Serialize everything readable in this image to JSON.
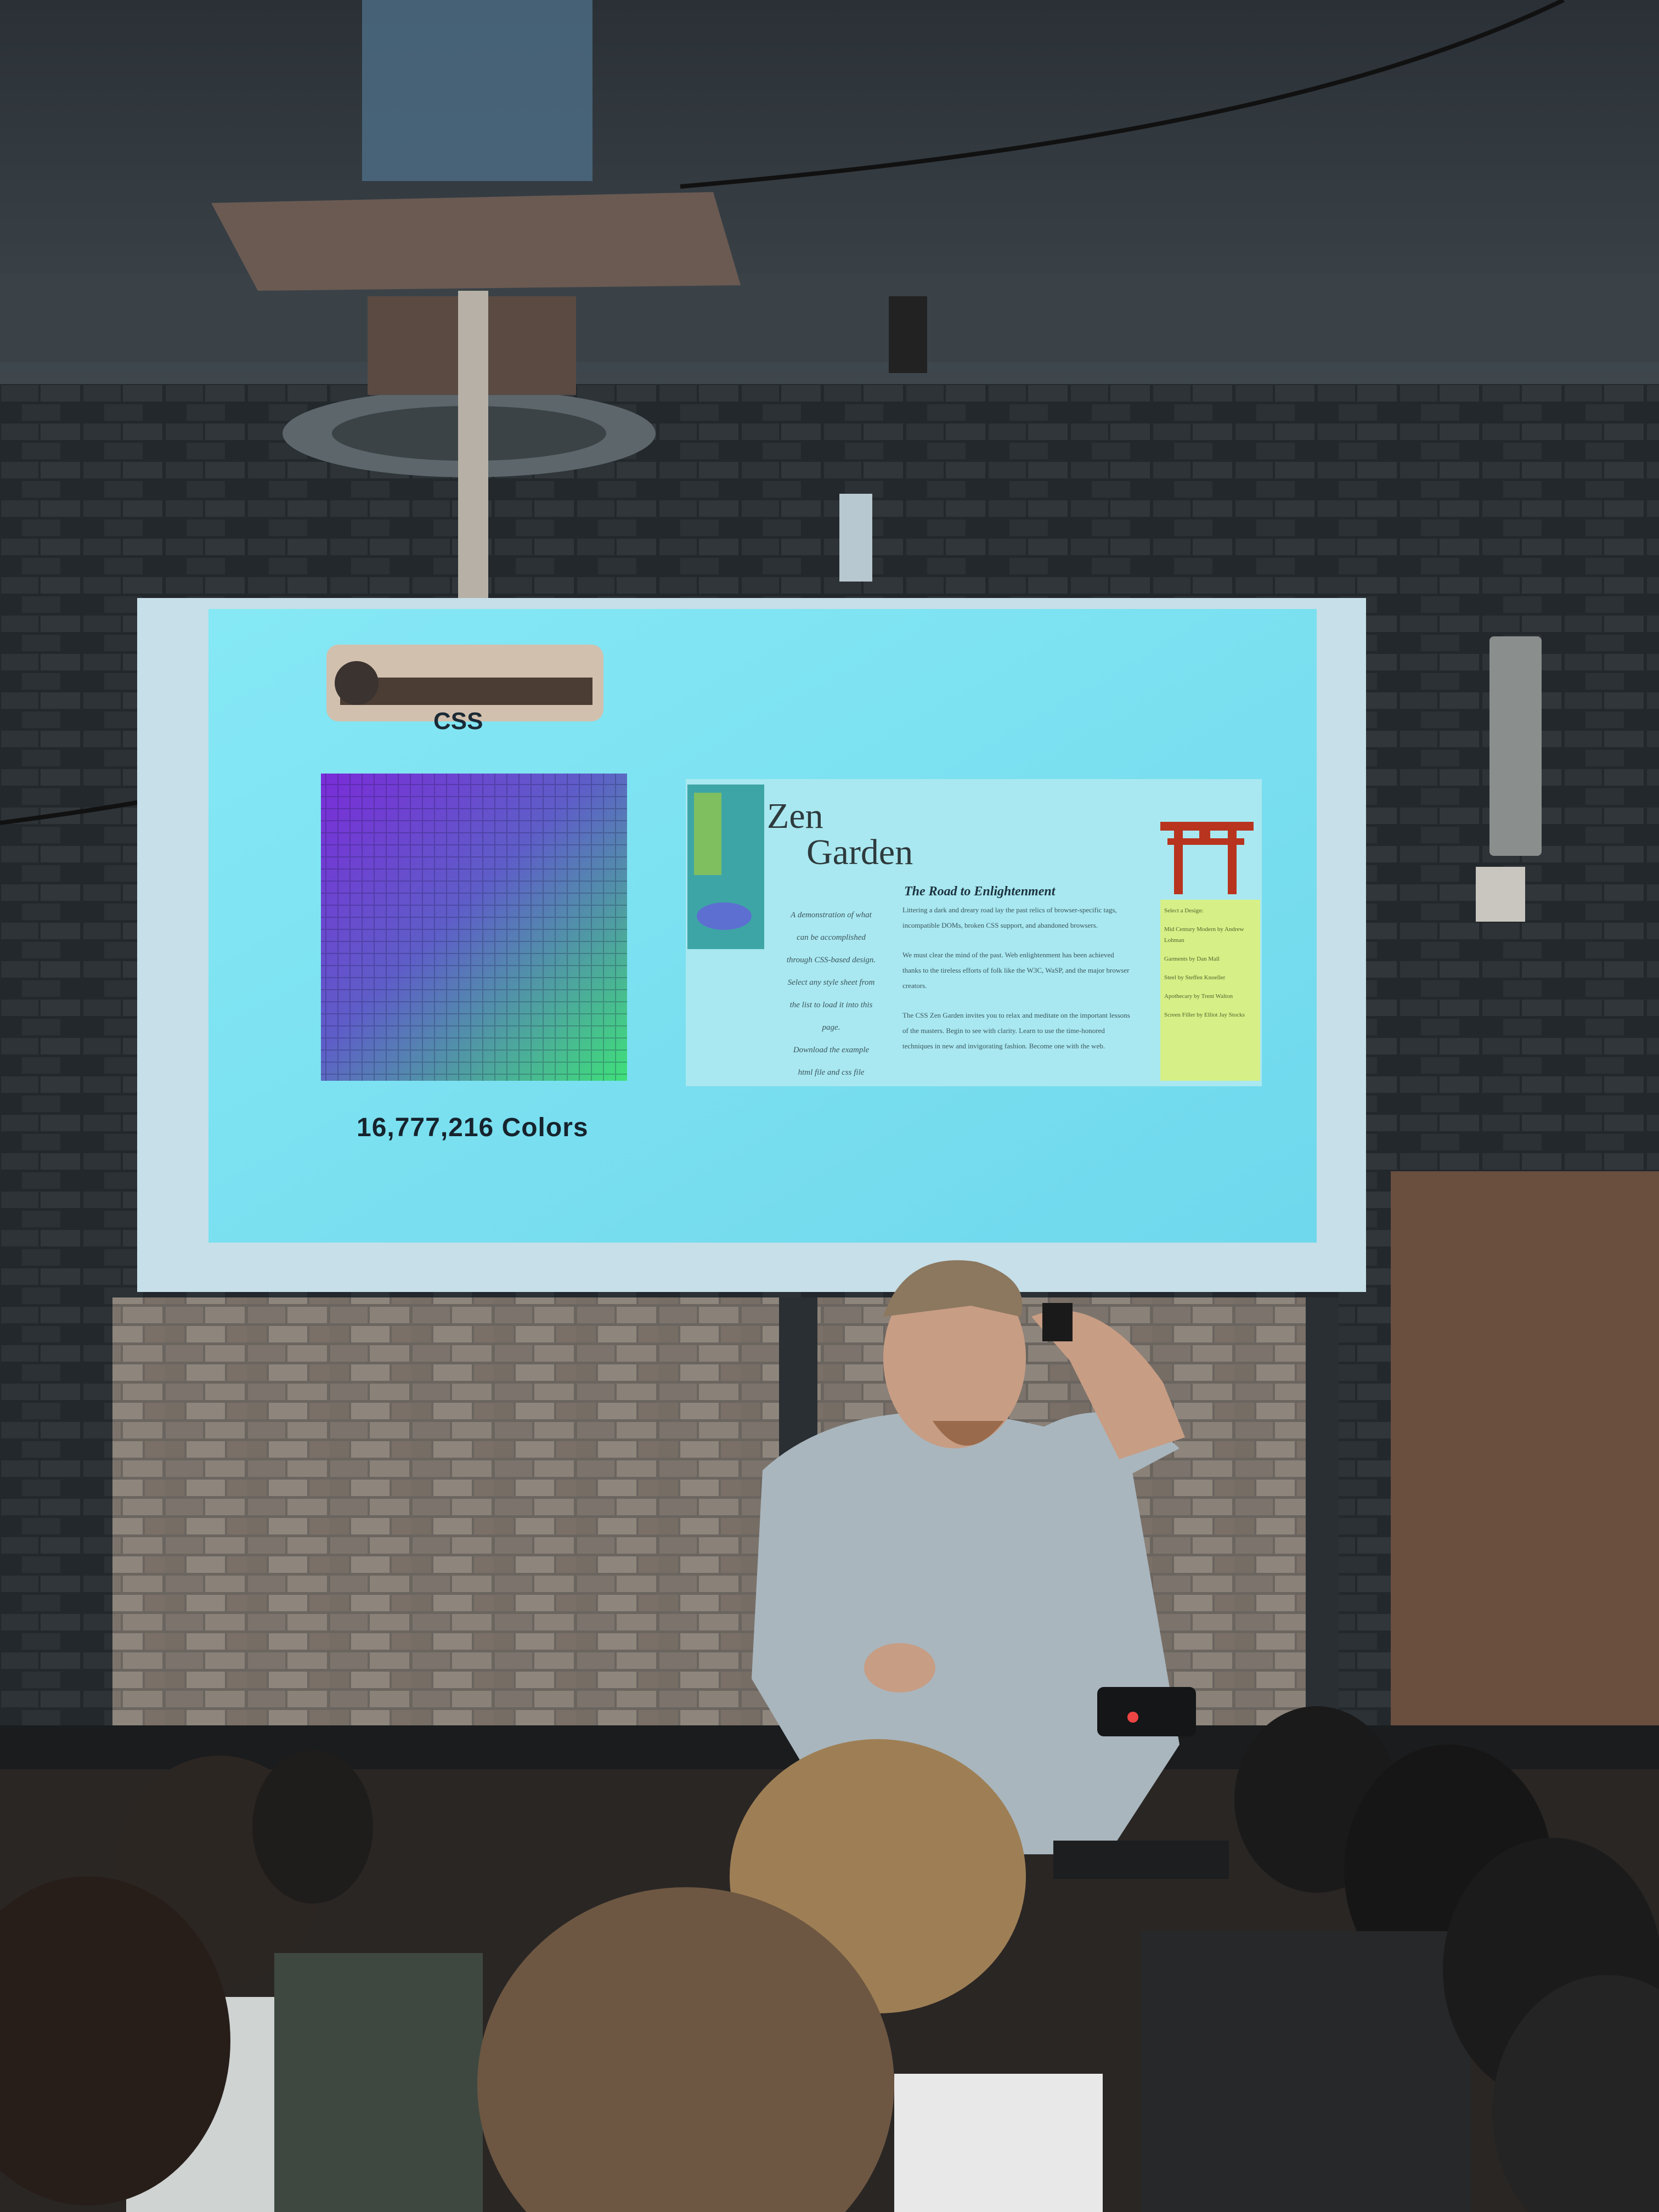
{
  "slide": {
    "css_label": "CSS",
    "colors_caption": "16,777,216 Colors",
    "zen_title_line1": "Zen",
    "zen_title_line2": "Garden",
    "zen_subheading": "The Road to Enlightenment",
    "zen_intro_lines": [
      "A demonstration of what",
      "can be accomplished",
      "through CSS-based design.",
      "Select any style sheet from",
      "the list to load it into this",
      "page.",
      "Download the example",
      "html file and css file"
    ],
    "zen_body_paragraphs": [
      "Littering a dark and dreary road lay the past relics of browser-specific tags, incompatible DOMs, broken CSS support, and abandoned browsers.",
      "We must clear the mind of the past. Web enlightenment has been achieved thanks to the tireless efforts of folk like the W3C, WaSP, and the major browser creators.",
      "The CSS Zen Garden invites you to relax and meditate on the important lessons of the masters. Begin to see with clarity. Learn to use the time-honored techniques in new and invigorating fashion. Become one with the web."
    ],
    "zen_side_items": [
      "Select a Design:",
      "Mid Century Modern by Andrew Lohman",
      "Garments by Dan Mall",
      "Steel by Steffen Knoeller",
      "Apothecary by Trent Walton",
      "Screen Filler by Elliot Jay Stocks"
    ]
  },
  "colors": {
    "projected_bg": "#7fe4f2",
    "gradient_tl": "#7a2cd8",
    "gradient_br": "#3fe07a",
    "side_panel": "#d6ef86",
    "torii": "#b8341e"
  }
}
